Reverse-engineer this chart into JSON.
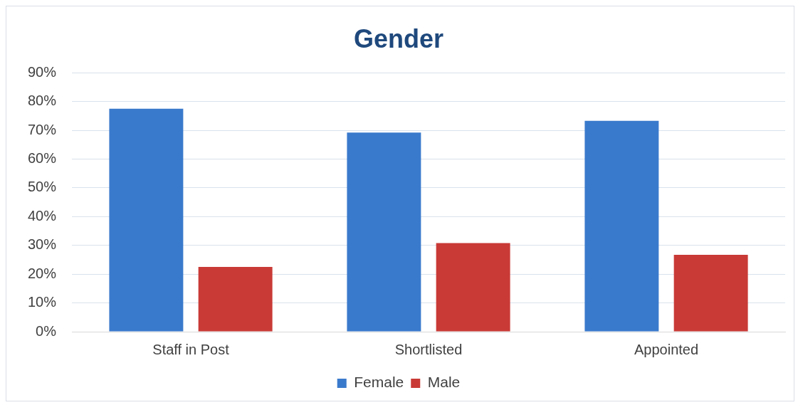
{
  "chart_data": {
    "type": "bar",
    "title": "Gender",
    "categories": [
      "Staff in Post",
      "Shortlisted",
      "Appointed"
    ],
    "series": [
      {
        "name": "Female",
        "color": "#3a7acc",
        "values": [
          77.5,
          69.2,
          73.3
        ]
      },
      {
        "name": "Male",
        "color": "#c93a36",
        "values": [
          22.5,
          30.8,
          26.7
        ]
      }
    ],
    "ylim": [
      0,
      90
    ],
    "yticks": [
      {
        "value": 0,
        "label": "0%"
      },
      {
        "value": 10,
        "label": "10%"
      },
      {
        "value": 20,
        "label": "20%"
      },
      {
        "value": 30,
        "label": "30%"
      },
      {
        "value": 40,
        "label": "40%"
      },
      {
        "value": 50,
        "label": "50%"
      },
      {
        "value": 60,
        "label": "60%"
      },
      {
        "value": 70,
        "label": "70%"
      },
      {
        "value": 80,
        "label": "80%"
      },
      {
        "value": 90,
        "label": "90%"
      }
    ],
    "grid": "y",
    "legend": "bottom"
  }
}
